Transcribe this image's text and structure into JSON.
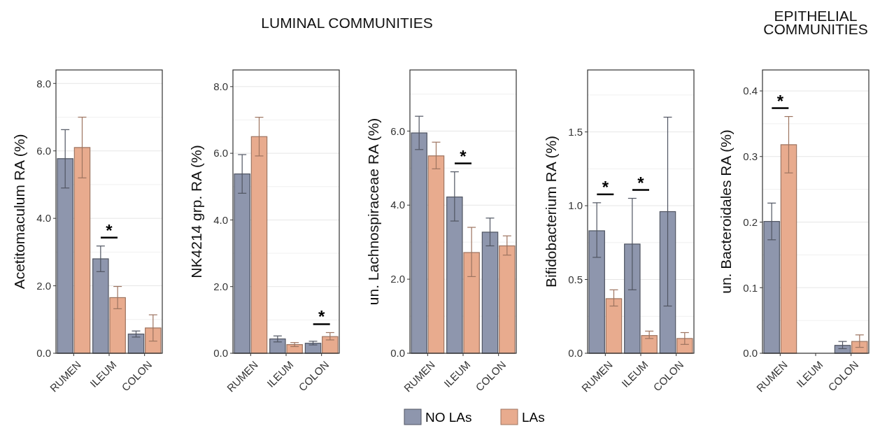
{
  "chart_data": [
    {
      "type": "bar",
      "ylabel": "Acetitomaculum RA (%)",
      "categories": [
        "RUMEN",
        "ILEUM",
        "COLON"
      ],
      "ylim": [
        0,
        8.4
      ],
      "yticks": [
        {
          "value": 0,
          "label": "0.0"
        },
        {
          "value": 2,
          "label": "2.0"
        },
        {
          "value": 4,
          "label": "4.0"
        },
        {
          "value": 6,
          "label": "6.0"
        },
        {
          "value": 8,
          "label": "8.0"
        }
      ],
      "grid": true,
      "legend": "bottom",
      "series": [
        {
          "name": "NO LAs",
          "color": "#8e96ad",
          "values": [
            5.77,
            2.8,
            0.57
          ],
          "errors": [
            [
              4.9,
              6.63
            ],
            [
              2.42,
              3.18
            ],
            [
              0.48,
              0.66
            ]
          ]
        },
        {
          "name": "LAs",
          "color": "#e8ab8e",
          "values": [
            6.1,
            1.65,
            0.75
          ],
          "errors": [
            [
              5.2,
              7.0
            ],
            [
              1.32,
              1.98
            ],
            [
              0.36,
              1.14
            ]
          ]
        }
      ],
      "annotations": [
        "LUMINAL COMMUNITIES",
        "*"
      ]
    },
    {
      "type": "bar",
      "ylabel": "NK4214 grp. RA (%)",
      "categories": [
        "RUMEN",
        "ILEUM",
        "COLON"
      ],
      "ylim": [
        0,
        8.5
      ],
      "yticks": [
        {
          "value": 0,
          "label": "0.0"
        },
        {
          "value": 2,
          "label": "2.0"
        },
        {
          "value": 4,
          "label": "4.0"
        },
        {
          "value": 6,
          "label": "6.0"
        },
        {
          "value": 8,
          "label": "8.0"
        }
      ],
      "grid": true,
      "series": [
        {
          "color": "#8e96ad",
          "values": [
            5.38,
            0.43,
            0.3
          ],
          "errors": [
            [
              4.8,
              5.96
            ],
            [
              0.34,
              0.52
            ],
            [
              0.25,
              0.36
            ]
          ]
        },
        {
          "color": "#e8ab8e",
          "values": [
            6.5,
            0.26,
            0.5
          ],
          "errors": [
            [
              5.92,
              7.08
            ],
            [
              0.2,
              0.32
            ],
            [
              0.4,
              0.62
            ]
          ]
        }
      ],
      "annotations": [
        "*"
      ]
    },
    {
      "type": "bar",
      "ylabel": "un. Lachnospiraceae RA (%)",
      "categories": [
        "RUMEN",
        "ILEUM",
        "COLON"
      ],
      "ylim": [
        0,
        7.65
      ],
      "yticks": [
        {
          "value": 0,
          "label": "0.0"
        },
        {
          "value": 2,
          "label": "2.0"
        },
        {
          "value": 4,
          "label": "4.0"
        },
        {
          "value": 6,
          "label": "6.0"
        }
      ],
      "grid": true,
      "series": [
        {
          "color": "#8e96ad",
          "values": [
            5.95,
            4.22,
            3.27
          ],
          "errors": [
            [
              5.5,
              6.4
            ],
            [
              3.57,
              4.9
            ],
            [
              2.9,
              3.65
            ]
          ]
        },
        {
          "color": "#e8ab8e",
          "values": [
            5.33,
            2.72,
            2.9
          ],
          "errors": [
            [
              4.98,
              5.7
            ],
            [
              2.07,
              3.4
            ],
            [
              2.65,
              3.17
            ]
          ]
        }
      ],
      "annotations": [
        "*"
      ]
    },
    {
      "type": "bar",
      "ylabel": "Bifidobacterium RA (%)",
      "categories": [
        "RUMEN",
        "ILEUM",
        "COLON"
      ],
      "ylim": [
        0,
        1.92
      ],
      "yticks": [
        {
          "value": 0,
          "label": "0.0"
        },
        {
          "value": 0.5,
          "label": "0.5"
        },
        {
          "value": 1,
          "label": "1.0"
        },
        {
          "value": 1.5,
          "label": "1.5"
        }
      ],
      "grid": true,
      "series": [
        {
          "color": "#8e96ad",
          "values": [
            0.83,
            0.74,
            0.96
          ],
          "errors": [
            [
              0.65,
              1.02
            ],
            [
              0.43,
              1.05
            ],
            [
              0.32,
              1.6
            ]
          ]
        },
        {
          "color": "#e8ab8e",
          "values": [
            0.37,
            0.12,
            0.1
          ],
          "errors": [
            [
              0.32,
              0.43
            ],
            [
              0.1,
              0.15
            ],
            [
              0.06,
              0.14
            ]
          ]
        }
      ],
      "annotations": [
        "*",
        "*"
      ]
    },
    {
      "type": "bar",
      "title": "EPITHELIAL\nCOMMUNITIES",
      "ylabel": "un. Bacteroidales RA (%)",
      "categories": [
        "RUMEN",
        "ILEUM",
        "COLON"
      ],
      "ylim": [
        0,
        0.432
      ],
      "yticks": [
        {
          "value": 0,
          "label": "0.0"
        },
        {
          "value": 0.1,
          "label": "0.1"
        },
        {
          "value": 0.2,
          "label": "0.2"
        },
        {
          "value": 0.3,
          "label": "0.3"
        },
        {
          "value": 0.4,
          "label": "0.4"
        }
      ],
      "grid": true,
      "series": [
        {
          "color": "#8e96ad",
          "values": [
            0.201,
            0,
            0.012
          ],
          "errors": [
            [
              0.173,
              0.229
            ],
            null,
            [
              0.007,
              0.018
            ]
          ]
        },
        {
          "color": "#e8ab8e",
          "values": [
            0.318,
            0,
            0.018
          ],
          "errors": [
            [
              0.275,
              0.361
            ],
            null,
            [
              0.009,
              0.028
            ]
          ]
        }
      ],
      "annotations": [
        "*"
      ]
    }
  ]
}
